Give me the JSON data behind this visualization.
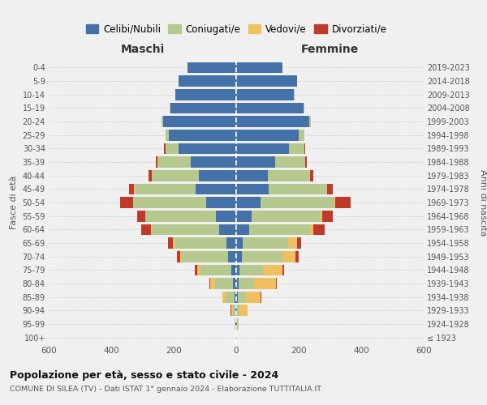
{
  "age_groups": [
    "100+",
    "95-99",
    "90-94",
    "85-89",
    "80-84",
    "75-79",
    "70-74",
    "65-69",
    "60-64",
    "55-59",
    "50-54",
    "45-49",
    "40-44",
    "35-39",
    "30-34",
    "25-29",
    "20-24",
    "15-19",
    "10-14",
    "5-9",
    "0-4"
  ],
  "birth_years": [
    "≤ 1923",
    "1924-1928",
    "1929-1933",
    "1934-1938",
    "1939-1943",
    "1944-1948",
    "1949-1953",
    "1954-1958",
    "1959-1963",
    "1964-1968",
    "1969-1973",
    "1974-1978",
    "1979-1983",
    "1984-1988",
    "1989-1993",
    "1994-1998",
    "1999-2003",
    "2004-2008",
    "2009-2013",
    "2014-2018",
    "2019-2023"
  ],
  "maschi": {
    "celibi": [
      1,
      2,
      3,
      5,
      10,
      15,
      25,
      30,
      55,
      65,
      95,
      130,
      120,
      145,
      185,
      215,
      235,
      210,
      195,
      185,
      155
    ],
    "coniugati": [
      0,
      3,
      8,
      28,
      58,
      100,
      148,
      168,
      215,
      225,
      235,
      195,
      150,
      105,
      42,
      10,
      4,
      2,
      0,
      0,
      0
    ],
    "vedovi": [
      0,
      1,
      5,
      10,
      15,
      10,
      5,
      5,
      3,
      2,
      1,
      2,
      1,
      1,
      0,
      0,
      0,
      0,
      0,
      0,
      0
    ],
    "divorziati": [
      0,
      0,
      1,
      2,
      4,
      8,
      12,
      15,
      30,
      25,
      40,
      15,
      10,
      5,
      3,
      1,
      0,
      0,
      0,
      0,
      0
    ]
  },
  "femmine": {
    "nubili": [
      1,
      2,
      3,
      5,
      8,
      10,
      18,
      22,
      42,
      50,
      78,
      105,
      100,
      125,
      170,
      200,
      235,
      215,
      185,
      195,
      148
    ],
    "coniugate": [
      0,
      2,
      8,
      25,
      50,
      75,
      130,
      145,
      195,
      220,
      235,
      185,
      135,
      95,
      48,
      18,
      5,
      2,
      1,
      0,
      0
    ],
    "vedove": [
      1,
      5,
      25,
      48,
      68,
      62,
      42,
      27,
      10,
      5,
      3,
      2,
      1,
      1,
      0,
      0,
      0,
      0,
      0,
      0,
      0
    ],
    "divorziate": [
      0,
      0,
      1,
      2,
      3,
      5,
      10,
      15,
      35,
      35,
      50,
      18,
      10,
      5,
      2,
      1,
      0,
      0,
      0,
      0,
      0
    ]
  },
  "colors": {
    "celibi": "#4472a8",
    "coniugati": "#b5c98e",
    "vedovi": "#f0c060",
    "divorziati": "#c0392b"
  },
  "xlim": 600,
  "title": "Popolazione per età, sesso e stato civile - 2024",
  "subtitle": "COMUNE DI SILEA (TV) - Dati ISTAT 1° gennaio 2024 - Elaborazione TUTTITALIA.IT",
  "xlabel_left": "Maschi",
  "xlabel_right": "Femmine",
  "ylabel_left": "Fasce di età",
  "ylabel_right": "Anni di nascita",
  "legend_labels": [
    "Celibi/Nubili",
    "Coniugati/e",
    "Vedovi/e",
    "Divorziati/e"
  ],
  "background_color": "#f0f0f0",
  "grid_color": "#cccccc",
  "text_color": "#555555",
  "title_color": "#111111"
}
